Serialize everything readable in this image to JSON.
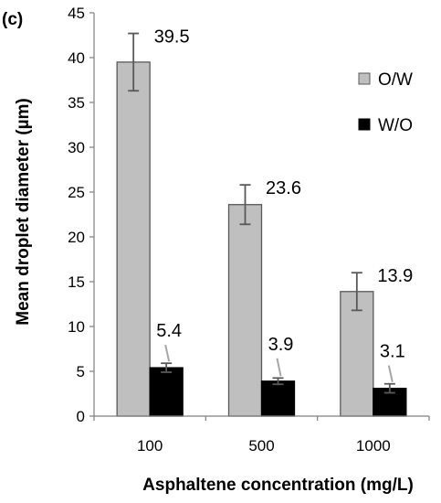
{
  "panel_label": "(c)",
  "chart_data": {
    "type": "bar",
    "title": "",
    "xlabel": "Asphaltene concentration (mg/L)",
    "ylabel": "Mean droplet diameter (µm)",
    "ylim": [
      0,
      45
    ],
    "yticks": [
      0,
      5,
      10,
      15,
      20,
      25,
      30,
      35,
      40,
      45
    ],
    "categories": [
      "100",
      "500",
      "1000"
    ],
    "grid": false,
    "legend_position": "right",
    "series": [
      {
        "name": "O/W",
        "color": "#bfbfbf",
        "values": [
          39.5,
          23.6,
          13.9
        ],
        "errors": [
          3.2,
          2.2,
          2.1
        ],
        "labels": [
          "39.5",
          "23.6",
          "13.9"
        ]
      },
      {
        "name": "W/O",
        "color": "#000000",
        "values": [
          5.4,
          3.9,
          3.1
        ],
        "errors": [
          0.5,
          0.35,
          0.5
        ],
        "labels": [
          "5.4",
          "3.9",
          "3.1"
        ]
      }
    ]
  }
}
